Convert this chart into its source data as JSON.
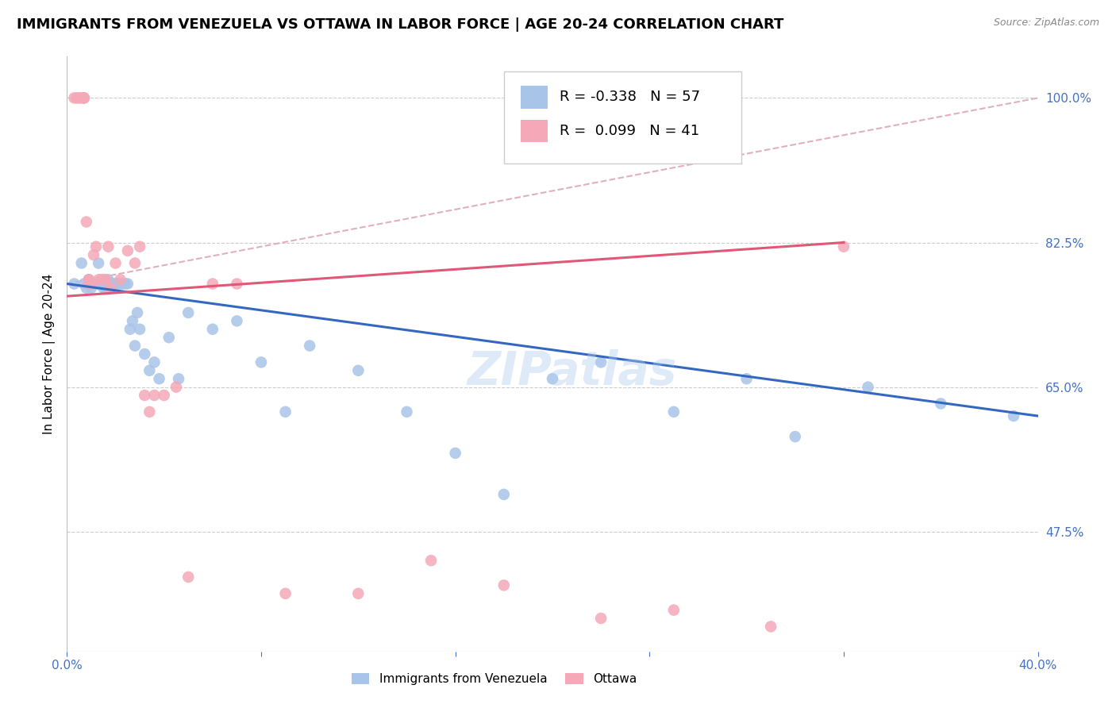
{
  "title": "IMMIGRANTS FROM VENEZUELA VS OTTAWA IN LABOR FORCE | AGE 20-24 CORRELATION CHART",
  "source": "Source: ZipAtlas.com",
  "ylabel": "In Labor Force | Age 20-24",
  "xlim": [
    0.0,
    0.4
  ],
  "ylim": [
    0.33,
    1.05
  ],
  "yticks": [
    0.475,
    0.65,
    0.825,
    1.0
  ],
  "ytick_labels": [
    "47.5%",
    "65.0%",
    "82.5%",
    "100.0%"
  ],
  "xticks": [
    0.0,
    0.08,
    0.16,
    0.24,
    0.32,
    0.4
  ],
  "xtick_labels": [
    "0.0%",
    "",
    "",
    "",
    "",
    "40.0%"
  ],
  "blue_color": "#A8C4E8",
  "pink_color": "#F4A8B8",
  "blue_line_color": "#3468C0",
  "pink_line_color": "#E05878",
  "ref_line_color": "#E0B0BC",
  "label_color": "#4472C4",
  "R_blue": -0.338,
  "N_blue": 57,
  "R_pink": 0.099,
  "N_pink": 41,
  "blue_line_x0": 0.0,
  "blue_line_y0": 0.775,
  "blue_line_x1": 0.4,
  "blue_line_y1": 0.615,
  "pink_line_x0": 0.0,
  "pink_line_y0": 0.76,
  "pink_line_x1": 0.32,
  "pink_line_y1": 0.825,
  "ref_line_x0": 0.0,
  "ref_line_y0": 0.775,
  "ref_line_x1": 0.4,
  "ref_line_y1": 1.0,
  "blue_x": [
    0.003,
    0.006,
    0.007,
    0.008,
    0.009,
    0.009,
    0.01,
    0.01,
    0.011,
    0.012,
    0.013,
    0.013,
    0.014,
    0.015,
    0.015,
    0.016,
    0.016,
    0.017,
    0.018,
    0.018,
    0.019,
    0.02,
    0.02,
    0.021,
    0.022,
    0.023,
    0.024,
    0.025,
    0.026,
    0.027,
    0.028,
    0.029,
    0.03,
    0.032,
    0.034,
    0.036,
    0.038,
    0.042,
    0.046,
    0.05,
    0.06,
    0.07,
    0.08,
    0.09,
    0.1,
    0.12,
    0.14,
    0.16,
    0.18,
    0.2,
    0.22,
    0.25,
    0.28,
    0.3,
    0.33,
    0.36,
    0.39
  ],
  "blue_y": [
    0.775,
    0.8,
    0.775,
    0.77,
    0.775,
    0.78,
    0.775,
    0.77,
    0.775,
    0.775,
    0.775,
    0.8,
    0.775,
    0.775,
    0.77,
    0.775,
    0.77,
    0.78,
    0.775,
    0.77,
    0.775,
    0.775,
    0.775,
    0.775,
    0.775,
    0.775,
    0.775,
    0.775,
    0.72,
    0.73,
    0.7,
    0.74,
    0.72,
    0.69,
    0.67,
    0.68,
    0.66,
    0.71,
    0.66,
    0.74,
    0.72,
    0.73,
    0.68,
    0.62,
    0.7,
    0.67,
    0.62,
    0.57,
    0.52,
    0.66,
    0.68,
    0.62,
    0.66,
    0.59,
    0.65,
    0.63,
    0.615
  ],
  "pink_x": [
    0.003,
    0.004,
    0.005,
    0.006,
    0.007,
    0.007,
    0.007,
    0.008,
    0.009,
    0.009,
    0.009,
    0.01,
    0.011,
    0.012,
    0.013,
    0.014,
    0.015,
    0.016,
    0.017,
    0.018,
    0.02,
    0.022,
    0.025,
    0.028,
    0.03,
    0.032,
    0.034,
    0.036,
    0.04,
    0.045,
    0.05,
    0.06,
    0.07,
    0.09,
    0.12,
    0.15,
    0.18,
    0.22,
    0.25,
    0.29,
    0.32
  ],
  "pink_y": [
    1.0,
    1.0,
    1.0,
    1.0,
    1.0,
    1.0,
    1.0,
    0.85,
    0.78,
    0.78,
    0.775,
    0.775,
    0.81,
    0.82,
    0.78,
    0.78,
    0.78,
    0.78,
    0.82,
    0.77,
    0.8,
    0.78,
    0.815,
    0.8,
    0.82,
    0.64,
    0.62,
    0.64,
    0.64,
    0.65,
    0.42,
    0.775,
    0.775,
    0.4,
    0.4,
    0.44,
    0.41,
    0.37,
    0.38,
    0.36,
    0.82
  ],
  "watermark": "ZIPatlas",
  "background_color": "#FFFFFF",
  "grid_color": "#CCCCCC",
  "title_fontsize": 13,
  "axis_label_fontsize": 11,
  "tick_fontsize": 11,
  "legend_fontsize": 13,
  "scatter_size": 110
}
